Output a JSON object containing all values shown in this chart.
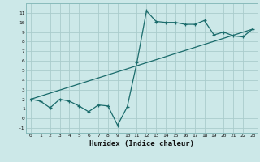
{
  "title": "",
  "xlabel": "Humidex (Indice chaleur)",
  "ylabel": "",
  "bg_color": "#cce8e8",
  "grid_color": "#aacccc",
  "line_color": "#1a6b6b",
  "line1_x": [
    0,
    1,
    2,
    3,
    4,
    5,
    6,
    7,
    8,
    9,
    10,
    11,
    12,
    13,
    14,
    15,
    16,
    17,
    18,
    19,
    20,
    21,
    22,
    23
  ],
  "line1_y": [
    2.0,
    1.8,
    1.1,
    2.0,
    1.8,
    1.3,
    0.7,
    1.4,
    1.3,
    -0.7,
    1.2,
    5.8,
    11.2,
    10.1,
    10.0,
    10.0,
    9.8,
    9.8,
    10.2,
    8.7,
    9.0,
    8.6,
    8.5,
    9.3
  ],
  "line2_x": [
    0,
    23
  ],
  "line2_y": [
    2.0,
    9.3
  ],
  "xlim": [
    -0.5,
    23.5
  ],
  "ylim": [
    -1.5,
    12.0
  ],
  "xticks": [
    0,
    1,
    2,
    3,
    4,
    5,
    6,
    7,
    8,
    9,
    10,
    11,
    12,
    13,
    14,
    15,
    16,
    17,
    18,
    19,
    20,
    21,
    22,
    23
  ],
  "yticks": [
    -1,
    0,
    1,
    2,
    3,
    4,
    5,
    6,
    7,
    8,
    9,
    10,
    11
  ]
}
